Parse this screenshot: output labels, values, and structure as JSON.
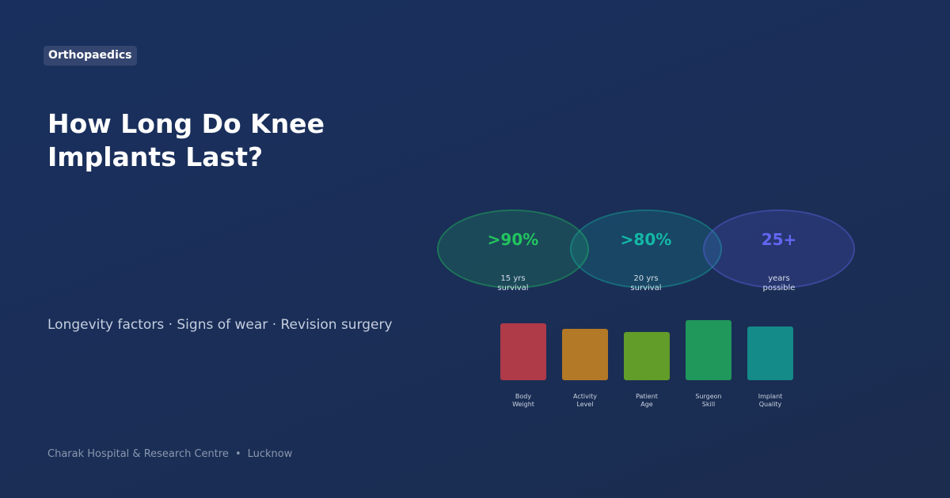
{
  "tag": "Orthopaedics",
  "title": "How Long Do Knee Implants Last?",
  "subtitle": "Longevity factors · Signs of wear · Revision surgery",
  "footer": {
    "org": "Charak Hospital & Research Centre",
    "separator": "•",
    "city": "Lucknow"
  },
  "stats": [
    {
      "value": ">90%",
      "label": "15 yrs\nsurvival",
      "color": "#22c55e"
    },
    {
      "value": ">80%",
      "label": "20 yrs\nsurvival",
      "color": "#14b8a6"
    },
    {
      "value": "25+",
      "label": "years\npossible",
      "color": "#6366f1"
    }
  ],
  "factors": [
    {
      "label": "Body\nWeight",
      "level": 0.76,
      "color": "#c03c47"
    },
    {
      "label": "Activity\nLevel",
      "level": 0.68,
      "color": "#c58221"
    },
    {
      "label": "Patient\nAge",
      "level": 0.64,
      "color": "#6aa825"
    },
    {
      "label": "Surgeon\nSkill",
      "level": 0.8,
      "color": "#21a35c"
    },
    {
      "label": "Implant\nQuality",
      "level": 0.72,
      "color": "#14958f"
    }
  ]
}
